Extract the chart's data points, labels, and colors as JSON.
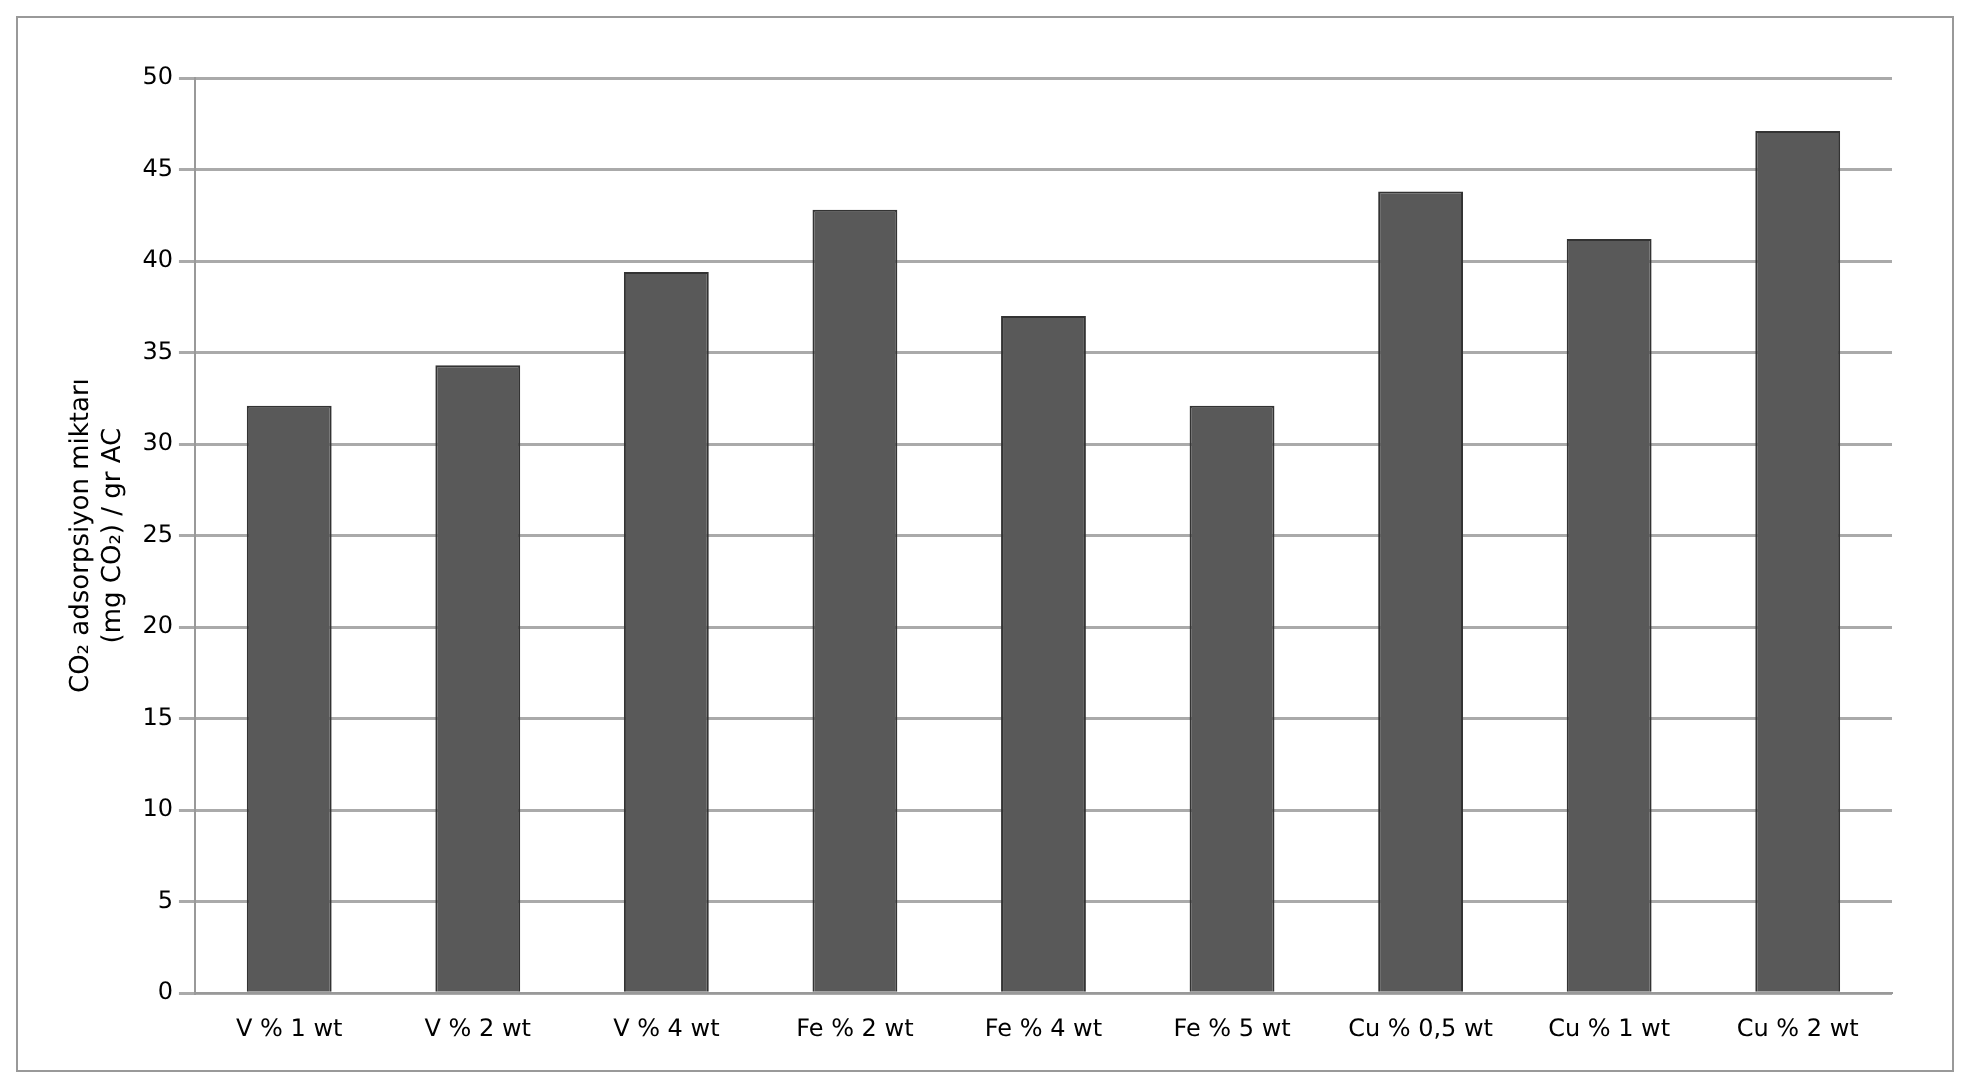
{
  "chart_data": {
    "type": "bar",
    "ylabel": "CO₂ adsorpsiyon miktarı\n(mg CO₂) / gr AC",
    "categories": [
      "V % 1 wt",
      "V % 2 wt",
      "V % 4 wt",
      "Fe % 2 wt",
      "Fe % 4 wt",
      "Fe % 5 wt",
      "Cu % 0,5 wt",
      "Cu % 1 wt",
      "Cu % 2 wt"
    ],
    "values": [
      32.1,
      34.3,
      39.4,
      42.8,
      37.0,
      32.1,
      43.8,
      41.2,
      47.1
    ],
    "color": "#595959",
    "ylim": [
      0,
      50
    ],
    "yticks": [
      0,
      5,
      10,
      15,
      20,
      25,
      30,
      35,
      40,
      45,
      50
    ],
    "grid": "y",
    "legend": false
  }
}
